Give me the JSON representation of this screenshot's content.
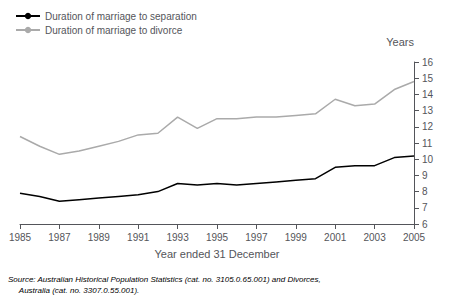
{
  "chart_data": {
    "type": "line",
    "x": [
      1985,
      1986,
      1987,
      1988,
      1989,
      1990,
      1991,
      1992,
      1993,
      1994,
      1995,
      1996,
      1997,
      1998,
      1999,
      2000,
      2001,
      2002,
      2003,
      2004,
      2005
    ],
    "series": [
      {
        "name": "Duration of marriage to separation",
        "color": "#000000",
        "values": [
          7.9,
          7.7,
          7.4,
          7.5,
          7.6,
          7.7,
          7.8,
          8.0,
          8.5,
          8.4,
          8.5,
          8.4,
          8.5,
          8.6,
          8.7,
          8.8,
          9.5,
          9.6,
          9.6,
          10.1,
          10.2
        ]
      },
      {
        "name": "Duration of marriage to divorce",
        "color": "#aaaaaa",
        "values": [
          11.4,
          10.8,
          10.3,
          10.5,
          10.8,
          11.1,
          11.5,
          11.6,
          12.6,
          11.9,
          12.5,
          12.5,
          12.6,
          12.6,
          12.7,
          12.8,
          13.7,
          13.3,
          13.4,
          14.3,
          14.8
        ]
      }
    ],
    "xlabel": "Year ended 31 December",
    "ylabel": "Years",
    "xlim": [
      1985,
      2005
    ],
    "ylim": [
      6,
      16
    ],
    "xticks": [
      1985,
      1987,
      1989,
      1991,
      1993,
      1995,
      1997,
      1999,
      2001,
      2003,
      2005
    ],
    "yticks": [
      6,
      7,
      8,
      9,
      10,
      11,
      12,
      13,
      14,
      15,
      16
    ],
    "annotations": [
      "Source: Australian Historical Population Statistics (cat. no. 3105.0.65.001) and Divorces,",
      "     Australia (cat. no. 3307.0.55.001)."
    ],
    "legend": "upper left",
    "grid": false
  }
}
